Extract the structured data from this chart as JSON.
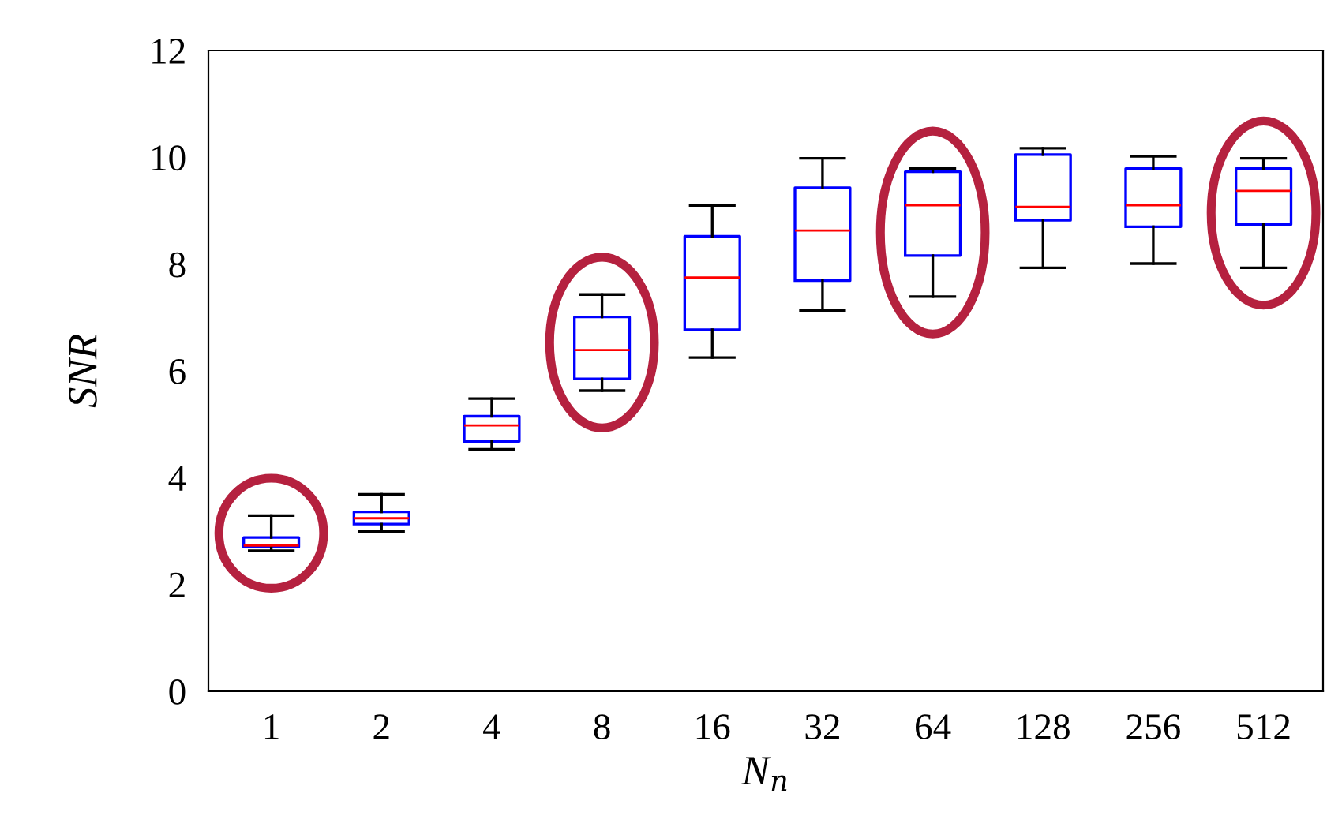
{
  "chart_data": {
    "type": "box",
    "xlabel": "N$_{n}$",
    "ylabel": "SNR",
    "categories": [
      "1",
      "2",
      "4",
      "8",
      "16",
      "32",
      "64",
      "128",
      "256",
      "512"
    ],
    "boxes": [
      {
        "low": 2.63,
        "q1": 2.7,
        "median": 2.73,
        "q3": 2.88,
        "high": 3.29
      },
      {
        "low": 2.99,
        "q1": 3.13,
        "median": 3.24,
        "q3": 3.36,
        "high": 3.69
      },
      {
        "low": 4.53,
        "q1": 4.68,
        "median": 4.98,
        "q3": 5.15,
        "high": 5.48
      },
      {
        "low": 5.63,
        "q1": 5.85,
        "median": 6.39,
        "q3": 7.01,
        "high": 7.43
      },
      {
        "low": 6.25,
        "q1": 6.77,
        "median": 7.75,
        "q3": 8.52,
        "high": 9.1
      },
      {
        "low": 7.13,
        "q1": 7.69,
        "median": 8.63,
        "q3": 9.43,
        "high": 9.98
      },
      {
        "low": 7.39,
        "q1": 8.16,
        "median": 9.1,
        "q3": 9.73,
        "high": 9.79
      },
      {
        "low": 7.93,
        "q1": 8.82,
        "median": 9.07,
        "q3": 10.05,
        "high": 10.17
      },
      {
        "low": 8.01,
        "q1": 8.7,
        "median": 9.1,
        "q3": 9.79,
        "high": 10.02
      },
      {
        "low": 7.93,
        "q1": 8.74,
        "median": 9.37,
        "q3": 9.79,
        "high": 9.98
      }
    ],
    "color": "#0000ff",
    "ylim": [
      0,
      12
    ],
    "yticks": [
      0,
      2,
      4,
      6,
      8,
      10,
      12
    ],
    "grid": false,
    "legend": false
  }
}
